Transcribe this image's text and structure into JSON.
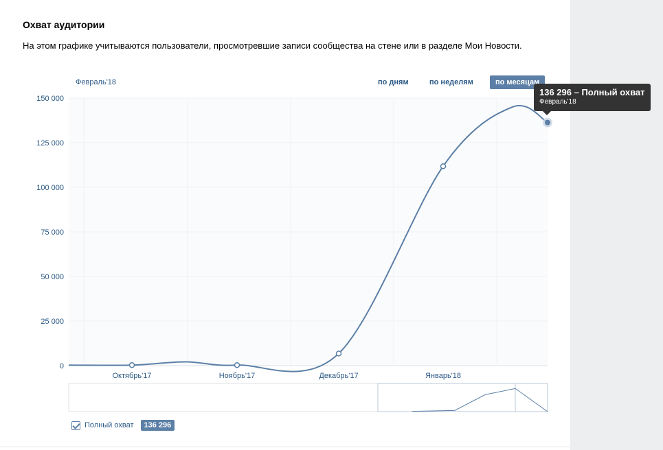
{
  "header": {
    "title": "Охват аудитории",
    "description": "На этом графике учитываются пользователи, просмотревшие записи сообщества на стене или в разделе Мои Новости."
  },
  "period_label": "Февраль'18",
  "tabs": [
    {
      "label": "по дням",
      "active": false
    },
    {
      "label": "по неделям",
      "active": false
    },
    {
      "label": "по месяцам",
      "active": true
    }
  ],
  "tooltip": {
    "value_text": "136 296 – Полный охват",
    "date": "Февраль'18"
  },
  "legend": {
    "label": "Полный охват",
    "value": "136 296",
    "checked": true
  },
  "colors": {
    "accent": "#5b7fa6",
    "link": "#2a5885",
    "line": "#5b7fa6"
  },
  "chart_data": {
    "type": "line",
    "title": "",
    "xlabel": "",
    "ylabel": "",
    "ylim": [
      0,
      150000
    ],
    "y_ticks": [
      "0",
      "25 000",
      "50 000",
      "75 000",
      "100 000",
      "125 000",
      "150 000"
    ],
    "y_tick_values": [
      0,
      25000,
      50000,
      75000,
      100000,
      125000,
      150000
    ],
    "categories": [
      "Октябрь'17",
      "Ноябрь'17",
      "Декабрь'17",
      "Январь'18",
      "Февраль'18"
    ],
    "x_labels": [
      "Октябрь'17",
      "Ноябрь'17",
      "Декабрь'17",
      "Январь'18"
    ],
    "series": [
      {
        "name": "Полный охват",
        "values": [
          300,
          300,
          6800,
          111800,
          136296
        ]
      }
    ],
    "grid": true,
    "navigator": true
  }
}
